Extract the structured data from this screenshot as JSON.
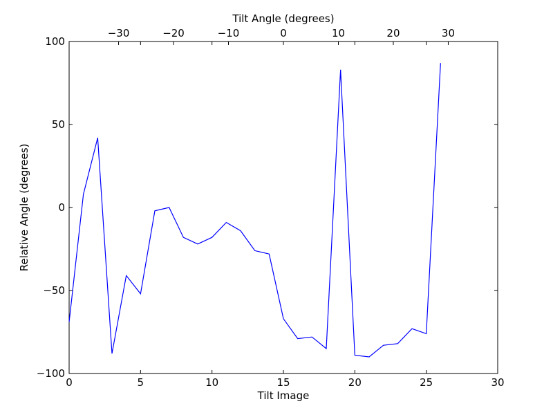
{
  "chart_data": {
    "type": "line",
    "xlabel": "Tilt Image",
    "ylabel": "Relative Angle (degrees)",
    "top_xlabel": "Tilt Angle (degrees)",
    "xlim": [
      0,
      30
    ],
    "ylim": [
      -100,
      100
    ],
    "top_xlim": [
      -39,
      39
    ],
    "x_ticks": [
      0,
      5,
      10,
      15,
      20,
      25,
      30
    ],
    "y_ticks": [
      -100,
      -50,
      0,
      50,
      100
    ],
    "top_x_ticks": [
      -30,
      -20,
      -10,
      0,
      10,
      20,
      30
    ],
    "top_x_tick_labels": [
      "−30",
      "−20",
      "−10",
      "0",
      "10",
      "20",
      "30"
    ],
    "y_tick_labels": [
      "−100",
      "−50",
      "0",
      "50",
      "100"
    ],
    "x_tick_labels": [
      "0",
      "5",
      "10",
      "15",
      "20",
      "25",
      "30"
    ],
    "grid": false,
    "series": [
      {
        "color": "#0000ff",
        "x": [
          0,
          1,
          2,
          3,
          4,
          5,
          6,
          7,
          8,
          9,
          10,
          11,
          12,
          13,
          14,
          15,
          16,
          17,
          18,
          19,
          20,
          21,
          22,
          23,
          24,
          25,
          26
        ],
        "y": [
          -69,
          8,
          42,
          -88,
          -41,
          -52,
          -2,
          0,
          -18,
          -22,
          -18,
          -9,
          -14,
          -26,
          -28,
          -67,
          -79,
          -78,
          -85,
          83,
          -89,
          -90,
          -83,
          -82,
          -73,
          -76,
          87
        ]
      }
    ]
  }
}
